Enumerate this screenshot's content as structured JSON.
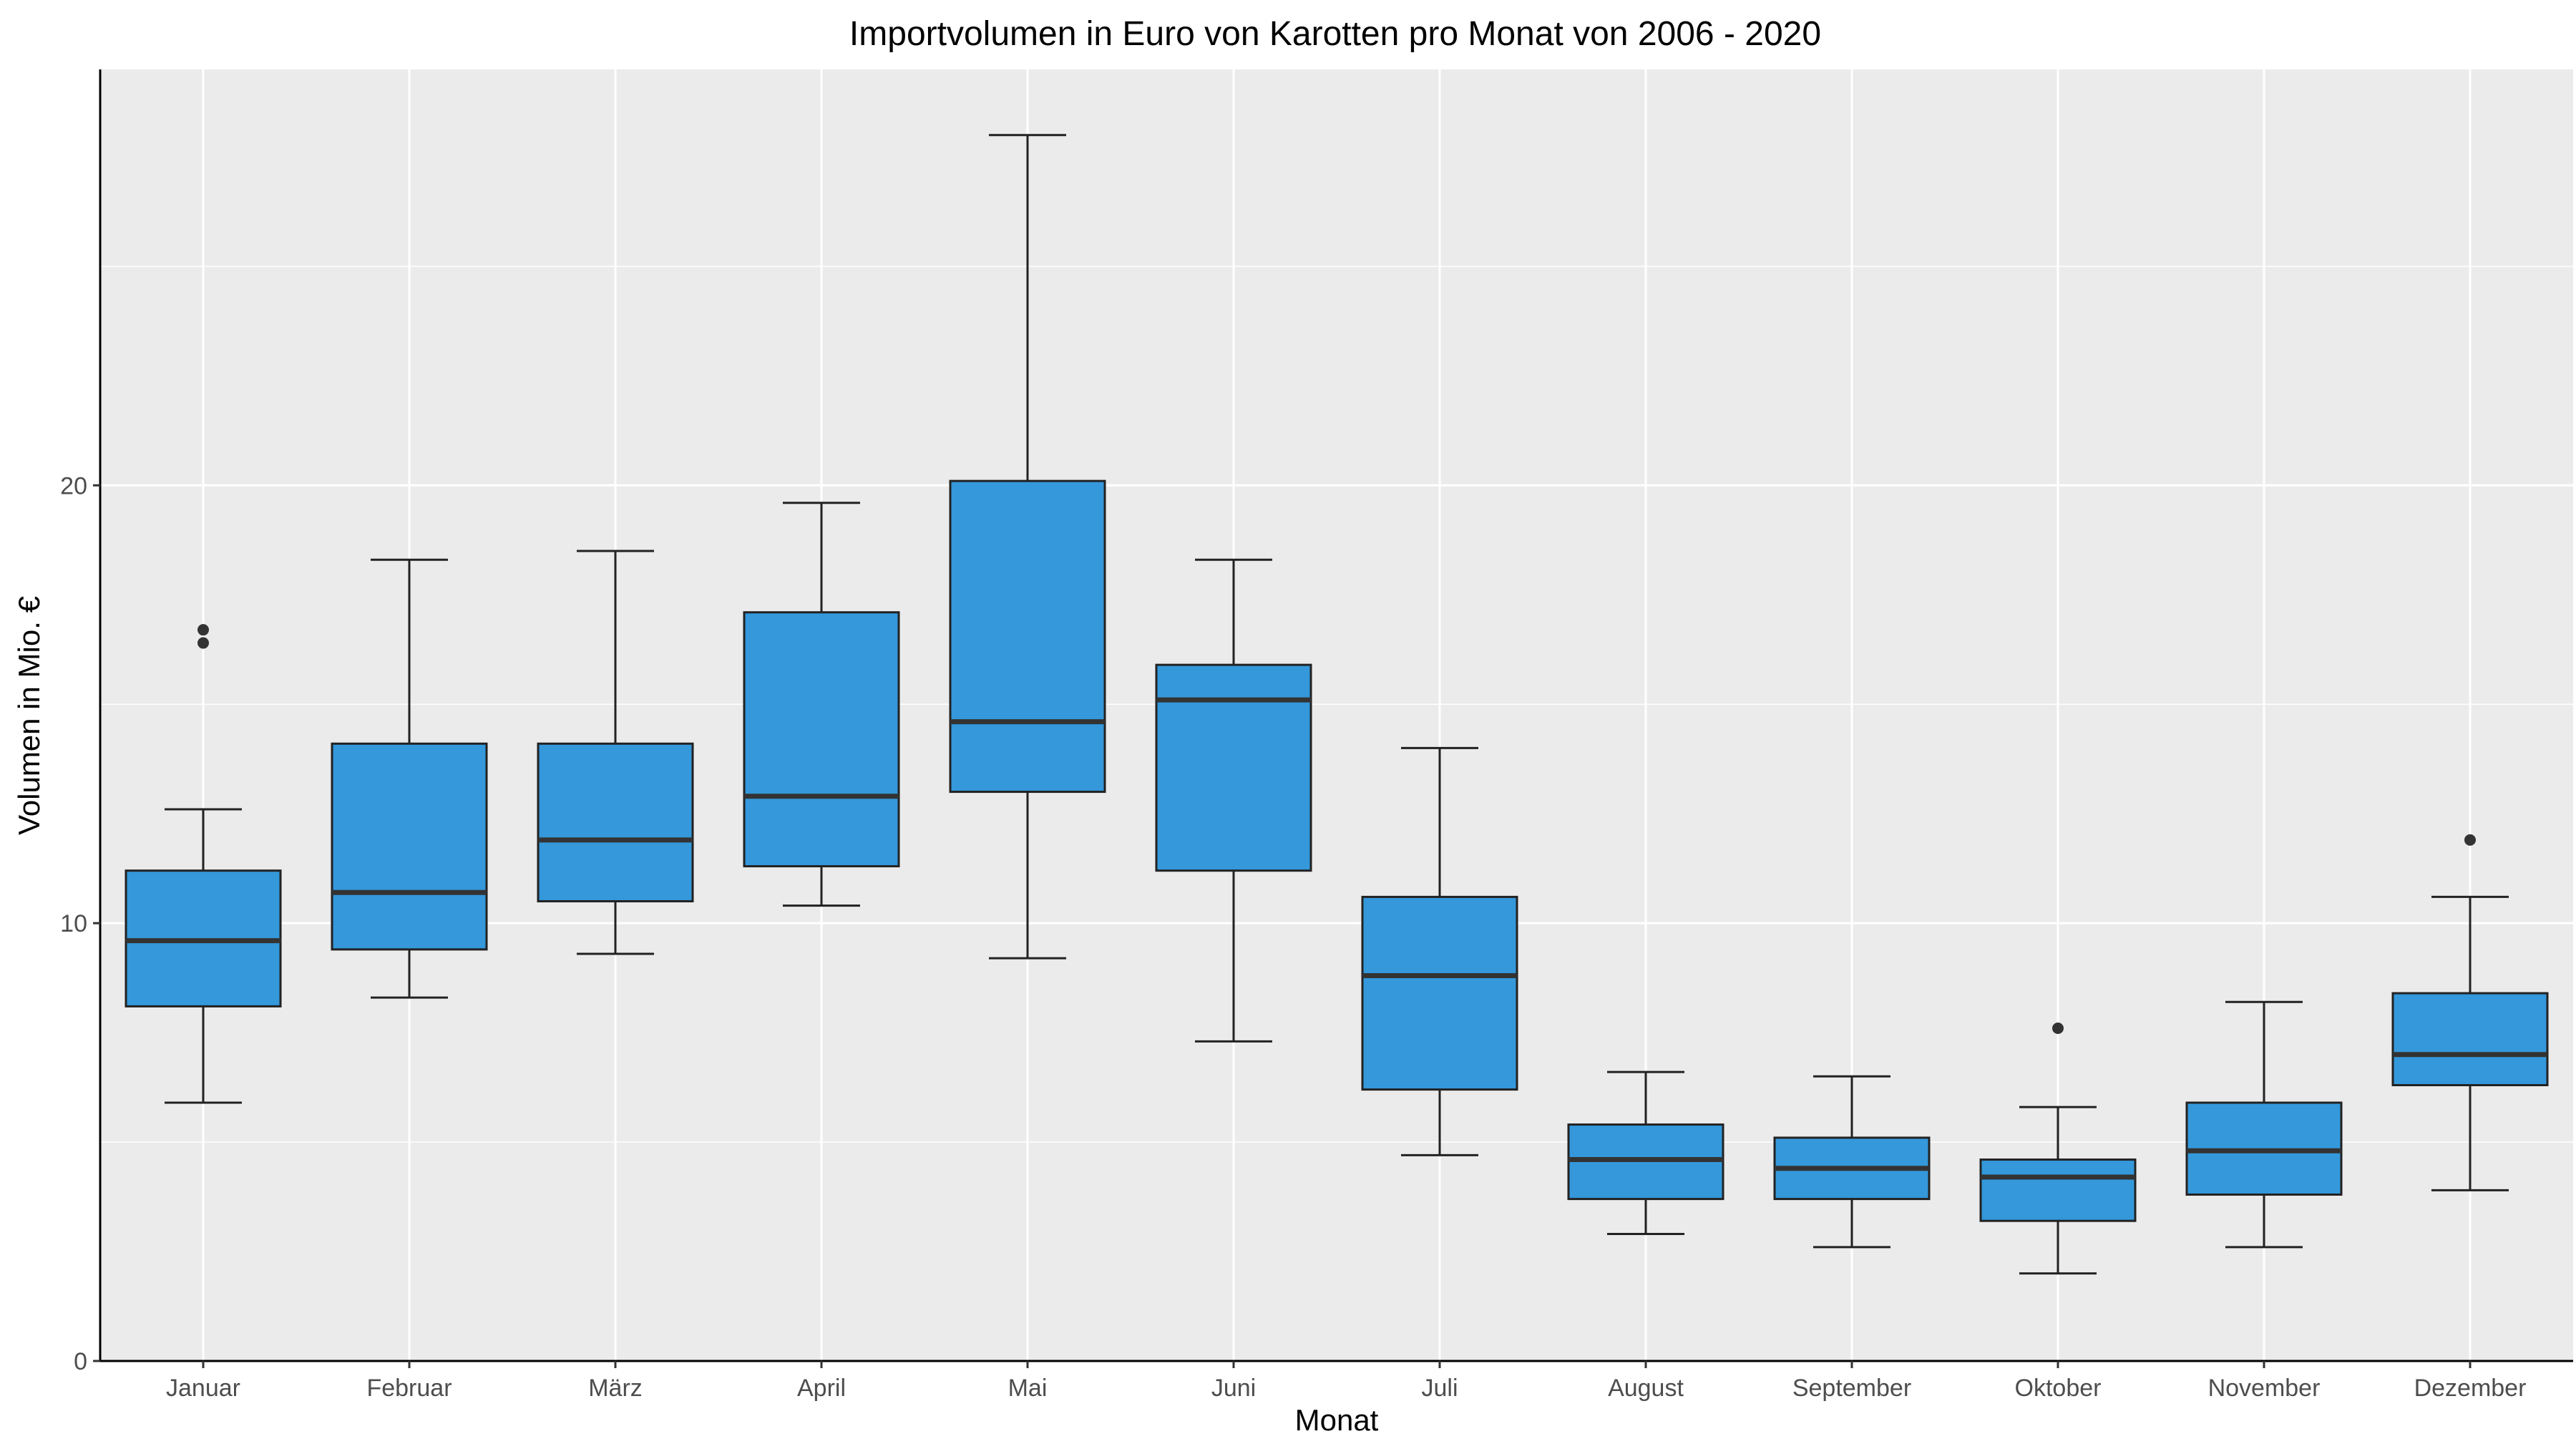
{
  "chart_data": {
    "type": "boxplot",
    "title": "Importvolumen in Euro von Karotten pro Monat von 2006 - 2020",
    "xlabel": "Monat",
    "ylabel": "Volumen in Mio. €",
    "ylim": [
      0,
      29.5
    ],
    "yticks": [
      0,
      10,
      20
    ],
    "grid": true,
    "colors": {
      "panel": "#ebebeb",
      "grid": "#ffffff",
      "box_fill": "#3498db",
      "box_stroke": "#222222",
      "median": "#333333",
      "outlier": "#333333"
    },
    "categories": [
      "Januar",
      "Februar",
      "März",
      "April",
      "Mai",
      "Juni",
      "Juli",
      "August",
      "September",
      "Oktober",
      "November",
      "Dezember"
    ],
    "boxes": [
      {
        "month": "Januar",
        "whisker_low": 5.9,
        "q1": 8.1,
        "median": 9.6,
        "q3": 11.2,
        "whisker_high": 12.6,
        "outliers": [
          16.4,
          16.7
        ]
      },
      {
        "month": "Februar",
        "whisker_low": 8.3,
        "q1": 9.4,
        "median": 10.7,
        "q3": 14.1,
        "whisker_high": 18.3,
        "outliers": []
      },
      {
        "month": "März",
        "whisker_low": 9.3,
        "q1": 10.5,
        "median": 11.9,
        "q3": 14.1,
        "whisker_high": 18.5,
        "outliers": []
      },
      {
        "month": "April",
        "whisker_low": 10.4,
        "q1": 11.3,
        "median": 12.9,
        "q3": 17.1,
        "whisker_high": 19.6,
        "outliers": []
      },
      {
        "month": "Mai",
        "whisker_low": 9.2,
        "q1": 13.0,
        "median": 14.6,
        "q3": 20.1,
        "whisker_high": 28.0,
        "outliers": []
      },
      {
        "month": "Juni",
        "whisker_low": 7.3,
        "q1": 11.2,
        "median": 15.1,
        "q3": 15.9,
        "whisker_high": 18.3,
        "outliers": []
      },
      {
        "month": "Juli",
        "whisker_low": 4.7,
        "q1": 6.2,
        "median": 8.8,
        "q3": 10.6,
        "whisker_high": 14.0,
        "outliers": []
      },
      {
        "month": "August",
        "whisker_low": 2.9,
        "q1": 3.7,
        "median": 4.6,
        "q3": 5.4,
        "whisker_high": 6.6,
        "outliers": []
      },
      {
        "month": "September",
        "whisker_low": 2.6,
        "q1": 3.7,
        "median": 4.4,
        "q3": 5.1,
        "whisker_high": 6.5,
        "outliers": []
      },
      {
        "month": "Oktober",
        "whisker_low": 2.0,
        "q1": 3.2,
        "median": 4.2,
        "q3": 4.6,
        "whisker_high": 5.8,
        "outliers": [
          7.6
        ]
      },
      {
        "month": "November",
        "whisker_low": 2.6,
        "q1": 3.8,
        "median": 4.8,
        "q3": 5.9,
        "whisker_high": 8.2,
        "outliers": []
      },
      {
        "month": "Dezember",
        "whisker_low": 3.9,
        "q1": 6.3,
        "median": 7.0,
        "q3": 8.4,
        "whisker_high": 10.6,
        "outliers": [
          11.9
        ]
      }
    ]
  }
}
